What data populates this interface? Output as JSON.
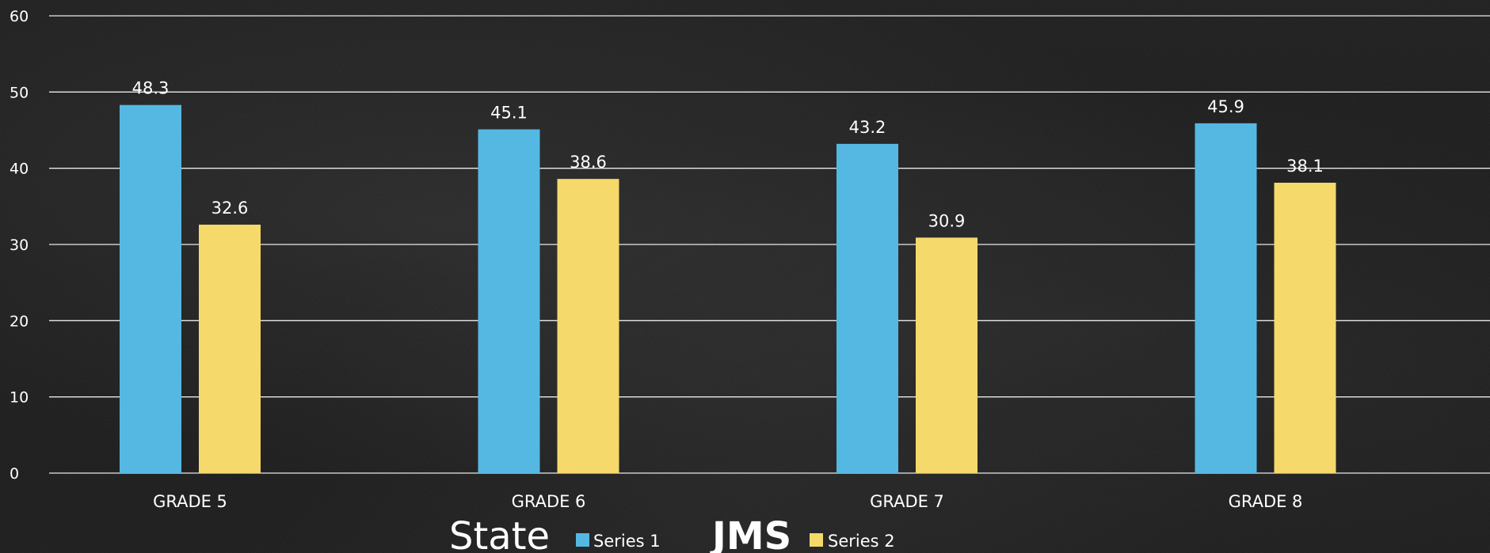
{
  "chart_data": {
    "type": "bar",
    "categories": [
      "GRADE 5",
      "GRADE 6",
      "GRADE 7",
      "GRADE 8"
    ],
    "series": [
      {
        "name": "Series 1",
        "values": [
          48.3,
          45.1,
          43.2,
          45.9
        ],
        "color": "#55b8e3"
      },
      {
        "name": "Series 2",
        "values": [
          32.6,
          38.6,
          30.9,
          38.1
        ],
        "color": "#f5d96b"
      }
    ],
    "ylim": [
      0,
      60
    ],
    "yticks": [
      0,
      10,
      20,
      30,
      40,
      50,
      60
    ],
    "grid": true,
    "legend_position": "bottom",
    "legend_captions": [
      "State",
      "JMS"
    ],
    "background": "#1a1a1a",
    "gridline_color": "#ffffff"
  }
}
